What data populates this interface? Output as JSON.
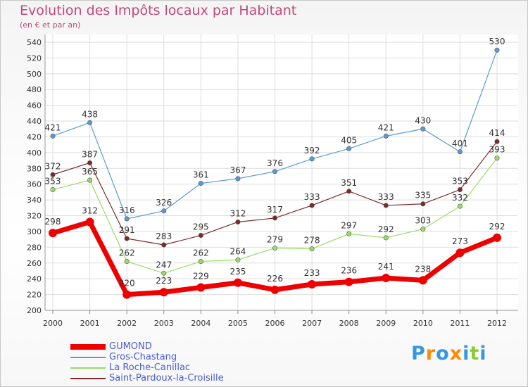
{
  "chart_data": {
    "type": "line",
    "title": "Evolution des Impôts locaux par Habitant",
    "subtitle": "(en € et par an)",
    "xlabel": "",
    "ylabel": "",
    "x": [
      "2000",
      "2001",
      "2002",
      "2003",
      "2004",
      "2005",
      "2006",
      "2007",
      "2008",
      "2009",
      "2010",
      "2011",
      "2012"
    ],
    "ylim": [
      200,
      540
    ],
    "yticks": [
      "200",
      "220",
      "240",
      "260",
      "280",
      "300",
      "320",
      "340",
      "360",
      "380",
      "400",
      "420",
      "440",
      "460",
      "480",
      "500",
      "520",
      "540"
    ],
    "grid": true,
    "legend_position": "bottom-left",
    "series": [
      {
        "name": "GUMOND",
        "color": "#ee0000",
        "width": 7,
        "values": [
          298,
          312,
          220,
          223,
          229,
          235,
          226,
          233,
          236,
          241,
          238,
          273,
          292
        ]
      },
      {
        "name": "Gros-Chastang",
        "color": "#5b9bd5",
        "width": 1.2,
        "values": [
          421,
          438,
          316,
          326,
          361,
          367,
          376,
          392,
          405,
          421,
          430,
          401,
          530
        ]
      },
      {
        "name": "La Roche-Canillac",
        "color": "#99dd66",
        "width": 1.2,
        "values": [
          353,
          365,
          262,
          247,
          262,
          264,
          279,
          278,
          297,
          292,
          303,
          332,
          393
        ]
      },
      {
        "name": "Saint-Pardoux-la-Croisille",
        "color": "#7a2a2a",
        "width": 1.2,
        "values": [
          372,
          387,
          291,
          283,
          295,
          312,
          317,
          333,
          351,
          333,
          335,
          353,
          414
        ]
      }
    ]
  },
  "logo": {
    "letters": [
      {
        "ch": "P",
        "color": "#3399dd"
      },
      {
        "ch": "r",
        "color": "#ff8a00"
      },
      {
        "ch": "o",
        "color": "#3399dd"
      },
      {
        "ch": "x",
        "color": "#ff8a00"
      },
      {
        "ch": "i",
        "color": "#3399dd"
      },
      {
        "ch": "t",
        "color": "#88cc33"
      },
      {
        "ch": "i",
        "color": "#3399dd"
      }
    ]
  }
}
